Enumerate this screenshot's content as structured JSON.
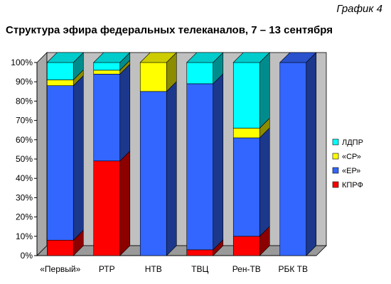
{
  "header": {
    "corner_label": "График 4",
    "title": "Структура эфира федеральных телеканалов, 7 – 13 сентября"
  },
  "chart_data": {
    "type": "bar",
    "stacked": true,
    "three_d": true,
    "categories": [
      "«Первый»",
      "РТР",
      "НТВ",
      "ТВЦ",
      "Рен-ТВ",
      "РБК ТВ"
    ],
    "series": [
      {
        "name": "КПРФ",
        "color": "#ff0000",
        "values": [
          8,
          49,
          0,
          3,
          10,
          0
        ]
      },
      {
        "name": "«ЕР»",
        "color": "#3366ff",
        "values": [
          80,
          45,
          85,
          86,
          51,
          100
        ]
      },
      {
        "name": "«СР»",
        "color": "#ffff00",
        "values": [
          3,
          2,
          15,
          0,
          5,
          0
        ]
      },
      {
        "name": "ЛДПР",
        "color": "#00ffff",
        "values": [
          9,
          4,
          0,
          11,
          34,
          0
        ]
      }
    ],
    "yticks": [
      "0%",
      "10%",
      "20%",
      "30%",
      "40%",
      "50%",
      "60%",
      "70%",
      "80%",
      "90%",
      "100%"
    ],
    "ylim": [
      0,
      100
    ],
    "grid": false,
    "legend_position": "right",
    "wall_color": "#c0c0c0"
  }
}
